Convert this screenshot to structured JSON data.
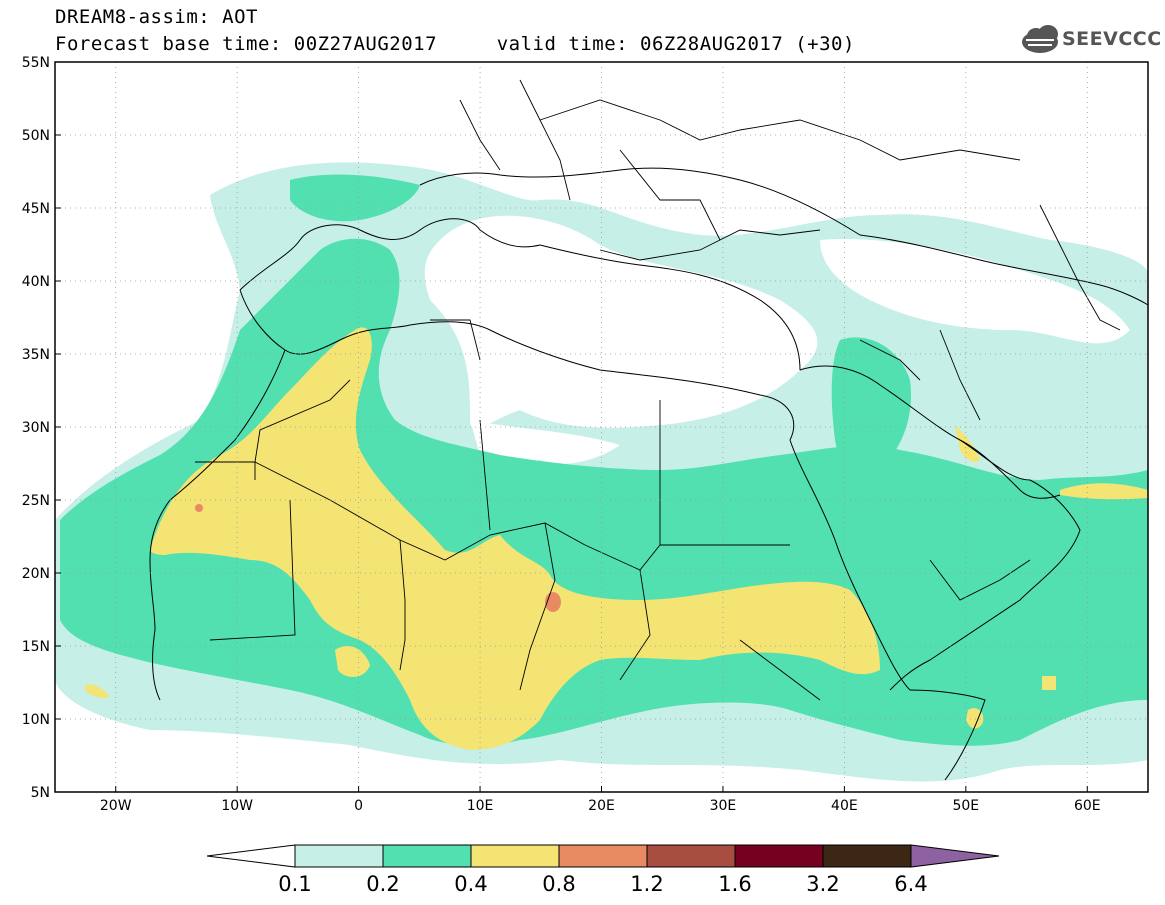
{
  "header": {
    "title_line1": "DREAM8-assim: AOT",
    "title_line2": "Forecast base time: 00Z27AUG2017     valid time: 06Z28AUG2017 (+30)",
    "logo_text": "SEEVCCC",
    "logo_icon": "cloud-icon"
  },
  "map": {
    "lon_range": [
      -25,
      65
    ],
    "lat_range": [
      5,
      55
    ],
    "lat_labels": [
      "55N",
      "50N",
      "45N",
      "40N",
      "35N",
      "30N",
      "25N",
      "20N",
      "15N",
      "10N",
      "5N"
    ],
    "lat_values": [
      55,
      50,
      45,
      40,
      35,
      30,
      25,
      20,
      15,
      10,
      5
    ],
    "lon_labels": [
      "20W",
      "10W",
      "0",
      "10E",
      "20E",
      "30E",
      "40E",
      "50E",
      "60E"
    ],
    "lon_values": [
      -20,
      -10,
      0,
      10,
      20,
      30,
      40,
      50,
      60
    ],
    "gridlines": true
  },
  "colorbar": {
    "labels": [
      "0.1",
      "0.2",
      "0.4",
      "0.8",
      "1.2",
      "1.6",
      "3.2",
      "6.4"
    ],
    "colors": [
      "#ffffff",
      "#c6efe8",
      "#52e0b0",
      "#f3e474",
      "#e88a62",
      "#a84e40",
      "#760020",
      "#3c2614",
      "#8e62a2"
    ]
  }
}
